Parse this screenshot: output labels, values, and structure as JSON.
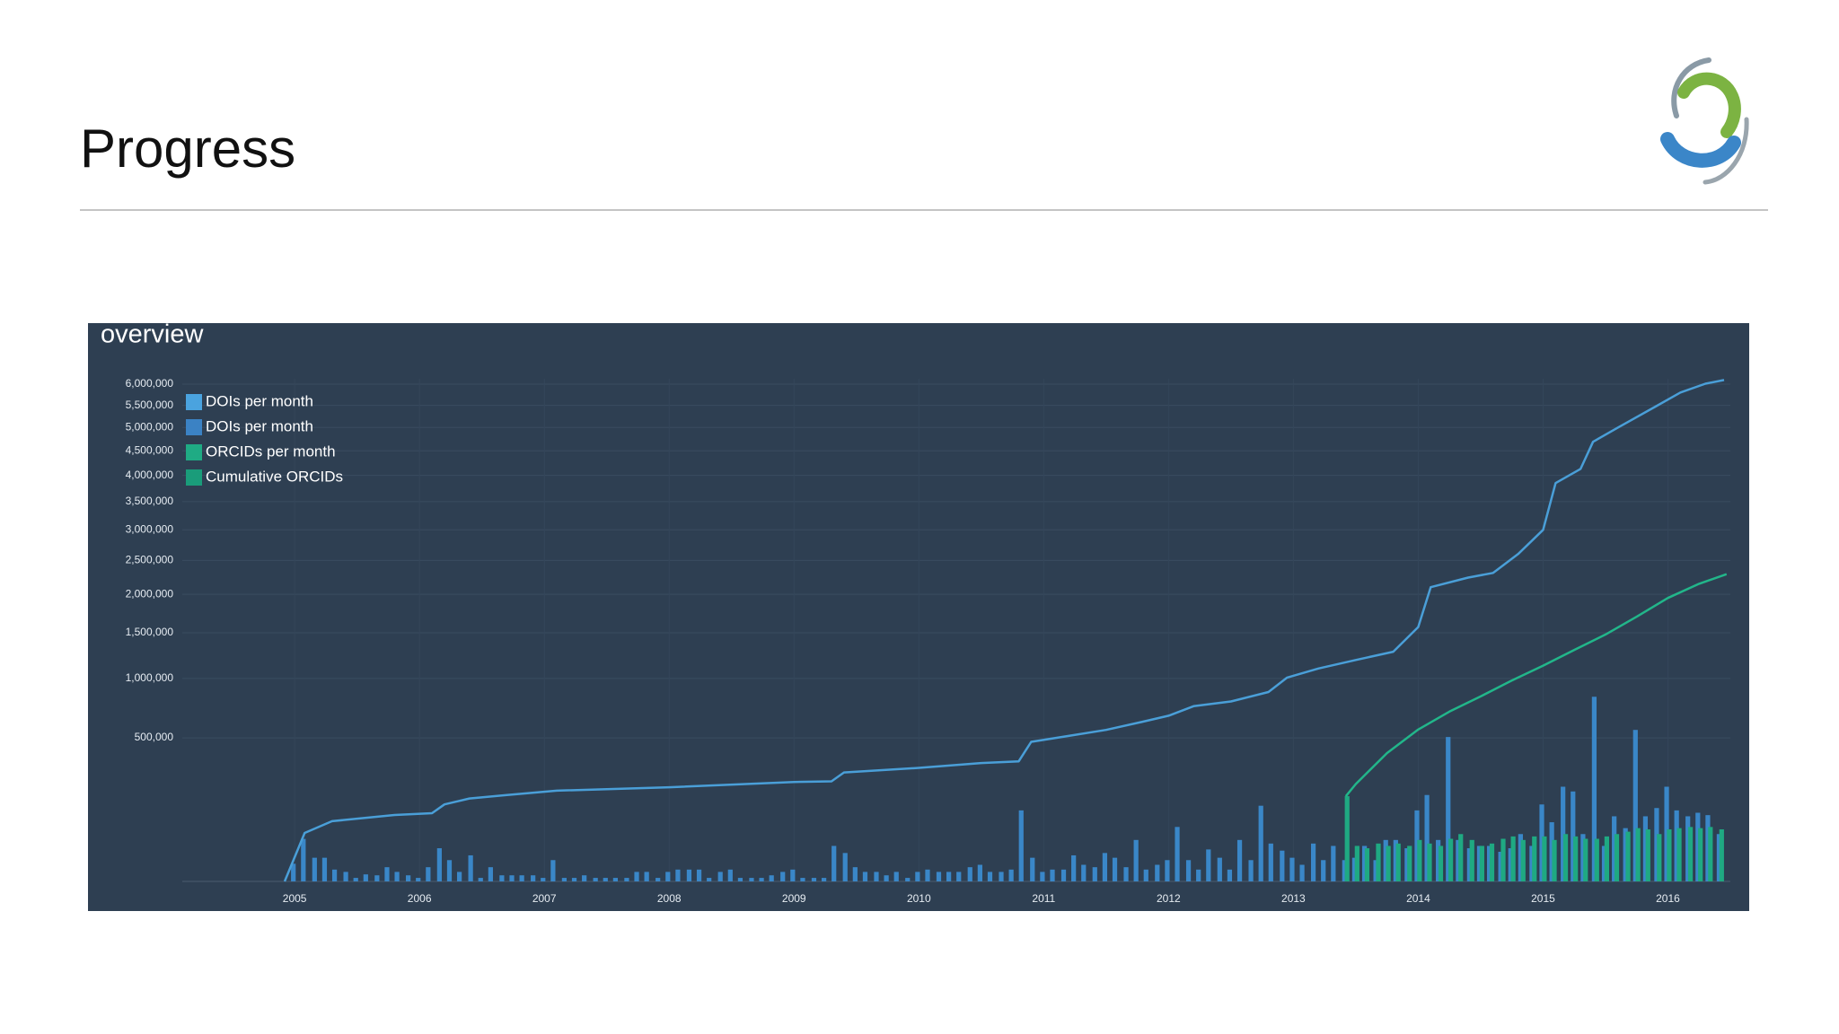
{
  "slide": {
    "title": "Progress"
  },
  "chart_data": {
    "type": "combo",
    "title": "overview",
    "yscale": "sqrt",
    "grid": true,
    "legend": "top-left",
    "xlim": [
      2004.1,
      2016.5
    ],
    "xticks": [
      2005,
      2006,
      2007,
      2008,
      2009,
      2010,
      2011,
      2012,
      2013,
      2014,
      2015,
      2016
    ],
    "ylim": [
      0,
      6000000
    ],
    "yticks": [
      {
        "value": 500000,
        "label": "500,000"
      },
      {
        "value": 1000000,
        "label": "1,000,000"
      },
      {
        "value": 1500000,
        "label": "1,500,000"
      },
      {
        "value": 2000000,
        "label": "2,000,000"
      },
      {
        "value": 2500000,
        "label": "2,500,000"
      },
      {
        "value": 3000000,
        "label": "3,000,000"
      },
      {
        "value": 3500000,
        "label": "3,500,000"
      },
      {
        "value": 4000000,
        "label": "4,000,000"
      },
      {
        "value": 4500000,
        "label": "4,500,000"
      },
      {
        "value": 5000000,
        "label": "5,000,000"
      },
      {
        "value": 5500000,
        "label": "5,500,000"
      },
      {
        "value": 6000000,
        "label": "6,000,000"
      }
    ],
    "series": [
      {
        "name": "DOIs per month",
        "type": "bar",
        "color": "#3a87c8",
        "legend_color": "#4aa3df",
        "x": [
          2005,
          2005.08,
          2005.17,
          2005.25,
          2005.33,
          2005.42,
          2005.5,
          2005.58,
          2005.67,
          2005.75,
          2005.83,
          2005.92,
          2006,
          2006.08,
          2006.17,
          2006.25,
          2006.33,
          2006.42,
          2006.5,
          2006.58,
          2006.67,
          2006.75,
          2006.83,
          2006.92,
          2007,
          2007.08,
          2007.17,
          2007.25,
          2007.33,
          2007.42,
          2007.5,
          2007.58,
          2007.67,
          2007.75,
          2007.83,
          2007.92,
          2008,
          2008.08,
          2008.17,
          2008.25,
          2008.33,
          2008.42,
          2008.5,
          2008.58,
          2008.67,
          2008.75,
          2008.83,
          2008.92,
          2009,
          2009.08,
          2009.17,
          2009.25,
          2009.33,
          2009.42,
          2009.5,
          2009.58,
          2009.67,
          2009.75,
          2009.83,
          2009.92,
          2010,
          2010.08,
          2010.17,
          2010.25,
          2010.33,
          2010.42,
          2010.5,
          2010.58,
          2010.67,
          2010.75,
          2010.83,
          2010.92,
          2011,
          2011.08,
          2011.17,
          2011.25,
          2011.33,
          2011.42,
          2011.5,
          2011.58,
          2011.67,
          2011.75,
          2011.83,
          2011.92,
          2012,
          2012.08,
          2012.17,
          2012.25,
          2012.33,
          2012.42,
          2012.5,
          2012.58,
          2012.67,
          2012.75,
          2012.83,
          2012.92,
          2013,
          2013.08,
          2013.17,
          2013.25,
          2013.33,
          2013.42,
          2013.5,
          2013.58,
          2013.67,
          2013.75,
          2013.83,
          2013.92,
          2014,
          2014.08,
          2014.17,
          2014.25,
          2014.33,
          2014.42,
          2014.5,
          2014.58,
          2014.67,
          2014.75,
          2014.83,
          2014.92,
          2015,
          2015.08,
          2015.17,
          2015.25,
          2015.33,
          2015.42,
          2015.5,
          2015.58,
          2015.67,
          2015.75,
          2015.83,
          2015.92,
          2016,
          2016.08,
          2016.17,
          2016.25,
          2016.33,
          2016.42
        ],
        "values": [
          7600,
          44000,
          13600,
          13600,
          3400,
          2200,
          300,
          1200,
          900,
          4900,
          2200,
          900,
          300,
          4900,
          26700,
          11000,
          2200,
          16500,
          300,
          4900,
          900,
          900,
          900,
          900,
          300,
          11000,
          300,
          300,
          900,
          300,
          300,
          300,
          300,
          2200,
          2200,
          300,
          2200,
          3400,
          3400,
          3400,
          300,
          2200,
          3400,
          300,
          300,
          300,
          900,
          2200,
          3400,
          300,
          300,
          300,
          30600,
          19600,
          4900,
          2200,
          2200,
          900,
          2200,
          300,
          2200,
          3400,
          2200,
          2200,
          2200,
          4900,
          6700,
          2200,
          2200,
          3400,
          122400,
          13600,
          2200,
          3400,
          3400,
          16500,
          6700,
          4900,
          19600,
          13600,
          4900,
          41700,
          3400,
          6700,
          11000,
          72000,
          11000,
          3400,
          24800,
          13600,
          3400,
          41700,
          11000,
          139000,
          34800,
          23000,
          13600,
          6700,
          34800,
          11000,
          30600,
          11000,
          13600,
          30600,
          11000,
          41700,
          41700,
          26700,
          122400,
          181200,
          41700,
          506000,
          41700,
          26700,
          30600,
          30600,
          21300,
          26700,
          54400,
          30600,
          143700,
          85000,
          217600,
          196400,
          54400,
          827400,
          30600,
          102900,
          68900,
          557000,
          102900,
          130700,
          217600,
          122400,
          102900,
          114400,
          106600,
          54400
        ]
      },
      {
        "name": "DOIs per month",
        "type": "line",
        "color": "#4a9fd8",
        "legend_color": "#3b82c4",
        "x": [
          2004.92,
          2005.08,
          2005.3,
          2005.8,
          2006.1,
          2006.2,
          2006.4,
          2006.7,
          2007.1,
          2008.0,
          2009.0,
          2009.3,
          2009.4,
          2010.0,
          2010.5,
          2010.8,
          2010.9,
          2011.2,
          2011.5,
          2011.8,
          2012.0,
          2012.2,
          2012.5,
          2012.8,
          2012.95,
          2013.2,
          2013.5,
          2013.8,
          2014.0,
          2014.1,
          2014.4,
          2014.6,
          2014.8,
          2015.0,
          2015.1,
          2015.3,
          2015.4,
          2015.6,
          2015.9,
          2016.1,
          2016.3,
          2016.45
        ],
        "values": [
          0,
          57000,
          88000,
          107000,
          113000,
          144000,
          167000,
          181000,
          200000,
          215000,
          240000,
          243000,
          288000,
          313000,
          340000,
          350000,
          473000,
          514000,
          557000,
          620000,
          666000,
          745000,
          786000,
          870000,
          1008000,
          1100000,
          1190000,
          1280000,
          1570000,
          2100000,
          2240000,
          2310000,
          2600000,
          3000000,
          3850000,
          4130000,
          4690000,
          5000000,
          5470000,
          5800000,
          6010000,
          6100000
        ]
      },
      {
        "name": "ORCIDs per month",
        "type": "bar",
        "color": "#1fa982",
        "legend_color": "#1fab84",
        "x": [
          2013.42,
          2013.5,
          2013.58,
          2013.67,
          2013.75,
          2013.83,
          2013.92,
          2014,
          2014.08,
          2014.17,
          2014.25,
          2014.33,
          2014.42,
          2014.5,
          2014.58,
          2014.67,
          2014.75,
          2014.83,
          2014.92,
          2015,
          2015.08,
          2015.17,
          2015.25,
          2015.33,
          2015.42,
          2015.5,
          2015.58,
          2015.67,
          2015.75,
          2015.83,
          2015.92,
          2016,
          2016.08,
          2016.17,
          2016.25,
          2016.33,
          2016.42
        ],
        "values": [
          176300,
          30600,
          26700,
          34800,
          30600,
          34800,
          30600,
          41700,
          34800,
          30600,
          44100,
          54400,
          41700,
          30600,
          34800,
          44100,
          49100,
          41700,
          49100,
          49100,
          41700,
          54400,
          49100,
          44100,
          44100,
          49100,
          54400,
          60000,
          68900,
          65800,
          54400,
          65800,
          68900,
          71900,
          68900,
          71900,
          65800
        ]
      },
      {
        "name": "Cumulative ORCIDs",
        "type": "line",
        "color": "#22b68a",
        "legend_color": "#1a9c7a",
        "x": [
          2013.42,
          2013.5,
          2013.75,
          2014.0,
          2014.25,
          2014.5,
          2014.75,
          2015.0,
          2015.25,
          2015.5,
          2015.75,
          2016.0,
          2016.25,
          2016.47
        ],
        "values": [
          176000,
          230000,
          400000,
          560000,
          700000,
          830000,
          980000,
          1130000,
          1300000,
          1480000,
          1700000,
          1950000,
          2150000,
          2290000
        ]
      }
    ]
  }
}
